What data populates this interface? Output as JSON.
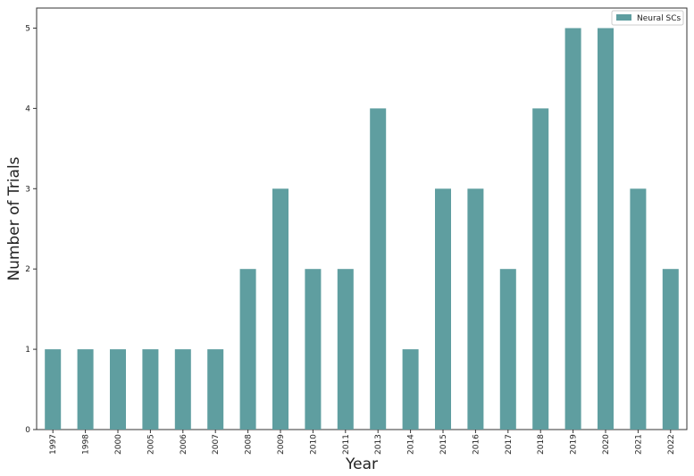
{
  "chart_data": {
    "type": "bar",
    "title": "",
    "xlabel": "Year",
    "ylabel": "Number of Trials",
    "categories": [
      "1997",
      "1998",
      "2000",
      "2005",
      "2006",
      "2007",
      "2008",
      "2009",
      "2010",
      "2011",
      "2013",
      "2014",
      "2015",
      "2016",
      "2017",
      "2018",
      "2019",
      "2020",
      "2021",
      "2022"
    ],
    "series": [
      {
        "name": "Neural SCs",
        "values": [
          1,
          1,
          1,
          1,
          1,
          1,
          2,
          3,
          2,
          2,
          4,
          1,
          3,
          3,
          2,
          4,
          5,
          5,
          3,
          2
        ],
        "color": "#5f9ea0"
      }
    ],
    "yticks": [
      "0",
      "1",
      "2",
      "3",
      "4",
      "5"
    ],
    "ylim": [
      0,
      5.25
    ],
    "grid": false,
    "legend_position": "top-right"
  }
}
